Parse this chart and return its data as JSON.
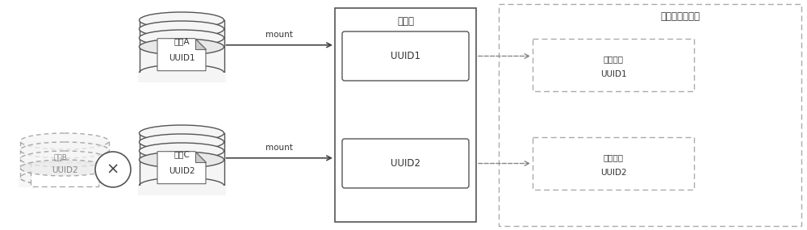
{
  "bg_color": "#ffffff",
  "disk_A_label": "磁盘A",
  "disk_B_label": "磁盘B",
  "disk_C_label": "磁盘C",
  "uuid1": "UUID1",
  "uuid2": "UUID2",
  "mount_label": "mount",
  "mount_point_label": "挂载点",
  "dist_sys_label": "分布式存储系统",
  "vdev_label": "虚拟设备",
  "solid_color": "#aaaaaa",
  "body_color": "#f5f5f5",
  "top_color": "#e0e0e0",
  "dashed_color": "#999999",
  "line_color": "#555555",
  "text_color": "#333333",
  "font_size": 7.5,
  "font_size_label": 8.5
}
